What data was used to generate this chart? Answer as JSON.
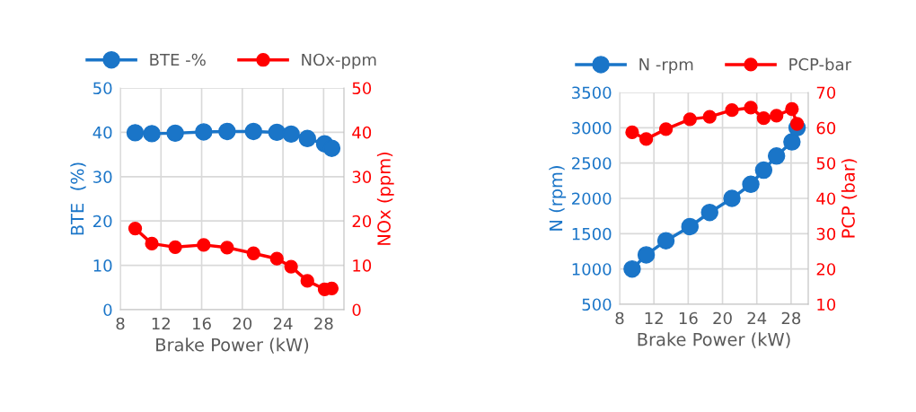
{
  "chart_data": [
    {
      "type": "line",
      "x": [
        9.46,
        11.1,
        13.4,
        16.2,
        18.5,
        21.1,
        23.4,
        24.8,
        26.4,
        28.1,
        28.8
      ],
      "xlabel": "Brake Power (kW)",
      "ylabel": "BTE  (%)",
      "y2label": "NOx (ppm)",
      "series": [
        {
          "name": "BTE -%",
          "color": "#1a75c8",
          "values": [
            39.9,
            39.7,
            39.8,
            40.1,
            40.2,
            40.2,
            40.0,
            39.6,
            38.6,
            37.4,
            36.4
          ]
        },
        {
          "name": "NOx-ppm",
          "color": "#ff0000",
          "axis": "y2",
          "values": [
            18.3,
            14.9,
            14.1,
            14.6,
            14.0,
            12.7,
            11.5,
            9.7,
            6.5,
            4.6,
            4.8
          ]
        }
      ],
      "xlim": [
        8,
        30
      ],
      "xticks": [
        8,
        12,
        16,
        20,
        24,
        28
      ],
      "ylim": [
        0,
        50
      ],
      "yticks": [
        0,
        10,
        20,
        30,
        40,
        50
      ],
      "y2lim": [
        0,
        50
      ],
      "y2ticks": [
        0,
        10,
        20,
        30,
        40,
        50
      ],
      "grid": true,
      "legend": "top",
      "marker": "circle",
      "line_style": "solid"
    },
    {
      "type": "line",
      "x": [
        9.46,
        11.1,
        13.4,
        16.2,
        18.5,
        21.1,
        23.3,
        24.8,
        26.3,
        28.1,
        28.7
      ],
      "xlabel": "Brake Power (kW)",
      "ylabel": "N (rpm)",
      "y2label": "PCP (bar)",
      "series": [
        {
          "name": "N -rpm",
          "color": "#1a75c8",
          "values": [
            1000,
            1200,
            1400,
            1600,
            1800,
            2000,
            2200,
            2400,
            2600,
            2800,
            3000
          ]
        },
        {
          "name": "PCP-bar",
          "color": "#ff0000",
          "axis": "y2",
          "values": [
            58.7,
            56.8,
            59.6,
            62.4,
            63.1,
            65.0,
            65.7,
            62.7,
            63.4,
            65.3,
            61.1
          ]
        }
      ],
      "xlim": [
        8,
        30
      ],
      "xticks": [
        8,
        12,
        16,
        20,
        24,
        28
      ],
      "ylim": [
        500,
        3500
      ],
      "yticks": [
        500,
        1000,
        1500,
        2000,
        2500,
        3000,
        3500
      ],
      "y2lim": [
        10,
        70
      ],
      "y2ticks": [
        10,
        20,
        30,
        40,
        50,
        60,
        70
      ],
      "grid": true,
      "legend": "top",
      "marker": "circle",
      "line_style": "solid"
    }
  ]
}
